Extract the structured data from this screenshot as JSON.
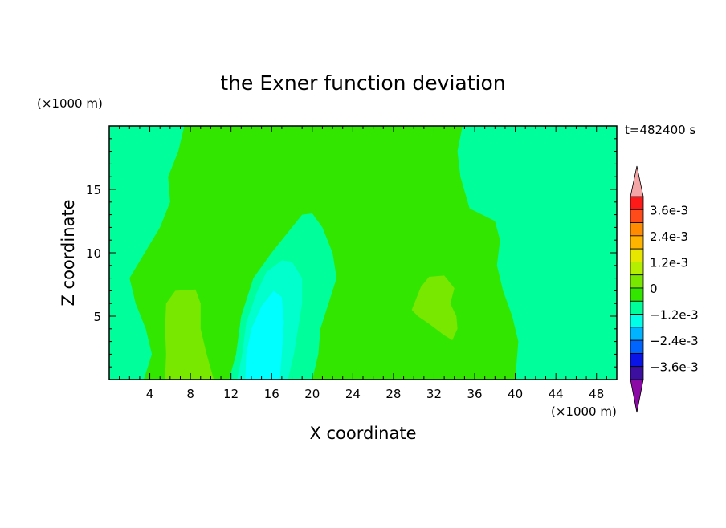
{
  "chart_data": {
    "type": "heatmap",
    "title": "the Exner function deviation",
    "xlabel": "X coordinate",
    "ylabel": "Z coordinate",
    "x_unit": "(×1000 m)",
    "y_unit": "(×1000 m)",
    "time_label": "t=482400 s",
    "xlim": [
      0,
      50
    ],
    "ylim": [
      0,
      20
    ],
    "x_ticks": [
      4,
      8,
      12,
      16,
      20,
      24,
      28,
      32,
      36,
      40,
      44,
      48
    ],
    "y_ticks": [
      5,
      10,
      15
    ],
    "colorbar": {
      "labels": [
        "3.6e-3",
        "2.4e-3",
        "1.2e-3",
        "0",
        "−1.2e-3",
        "−2.4e-3",
        "−3.6e-3"
      ],
      "label_values": [
        0.0036,
        0.0024,
        0.0012,
        0,
        -0.0012,
        -0.0024,
        -0.0036
      ],
      "over_color": "#f4a6a6",
      "under_color": "#8b0aa5",
      "bands": [
        {
          "min": 0.0036,
          "max": 0.0042,
          "color": "#ff1a1a"
        },
        {
          "min": 0.003,
          "max": 0.0036,
          "color": "#ff4a1a"
        },
        {
          "min": 0.0024,
          "max": 0.003,
          "color": "#ff8c00"
        },
        {
          "min": 0.0018,
          "max": 0.0024,
          "color": "#ffb400"
        },
        {
          "min": 0.0012,
          "max": 0.0018,
          "color": "#e6e600"
        },
        {
          "min": 0.0006,
          "max": 0.0012,
          "color": "#b4ee00"
        },
        {
          "min": 0.0,
          "max": 0.0006,
          "color": "#78e800"
        },
        {
          "min": -0.0006,
          "max": 0.0,
          "color": "#33e600"
        },
        {
          "min": -0.0012,
          "max": -0.0006,
          "color": "#00ff9a"
        },
        {
          "min": -0.0018,
          "max": -0.0012,
          "color": "#00ffe6"
        },
        {
          "min": -0.0024,
          "max": -0.0018,
          "color": "#00b4ff"
        },
        {
          "min": -0.003,
          "max": -0.0024,
          "color": "#0064ff"
        },
        {
          "min": -0.0036,
          "max": -0.003,
          "color": "#0a14e6"
        },
        {
          "min": -0.0042,
          "max": -0.0036,
          "color": "#3c0fa0"
        }
      ]
    },
    "fields": [
      {
        "level": 0.0,
        "color": "#33e600",
        "path": [
          [
            3.4,
            0
          ],
          [
            4.2,
            2
          ],
          [
            3.6,
            4
          ],
          [
            2.6,
            6
          ],
          [
            2.0,
            8
          ],
          [
            3.5,
            10
          ],
          [
            5.0,
            12
          ],
          [
            6.0,
            14
          ],
          [
            5.8,
            16
          ],
          [
            6.8,
            18
          ],
          [
            7.4,
            20
          ],
          [
            34.8,
            20
          ],
          [
            34.3,
            18
          ],
          [
            34.6,
            16
          ],
          [
            35.5,
            13.5
          ],
          [
            38.0,
            12.5
          ],
          [
            38.5,
            11.0
          ],
          [
            38.2,
            9.0
          ],
          [
            38.8,
            7.0
          ],
          [
            39.7,
            5.0
          ],
          [
            40.3,
            3.0
          ],
          [
            40.0,
            0
          ]
        ]
      },
      {
        "level": 0.0006,
        "color": "#78e800",
        "path": [
          [
            5.5,
            0
          ],
          [
            5.6,
            2
          ],
          [
            5.5,
            4
          ],
          [
            5.6,
            6
          ],
          [
            6.5,
            7.0
          ],
          [
            8.5,
            7.1
          ],
          [
            9.0,
            6.0
          ],
          [
            9.0,
            4.0
          ],
          [
            9.6,
            2.0
          ],
          [
            10.3,
            0
          ]
        ]
      },
      {
        "level": 0.0006,
        "color": "#78e800",
        "path": [
          [
            29.8,
            5.5
          ],
          [
            30.7,
            7.3
          ],
          [
            31.5,
            8.1
          ],
          [
            33.0,
            8.2
          ],
          [
            34.0,
            7.2
          ],
          [
            33.6,
            6.0
          ],
          [
            34.2,
            5.0
          ],
          [
            34.3,
            4.0
          ],
          [
            33.8,
            3.1
          ],
          [
            33.0,
            3.5
          ],
          [
            31.5,
            4.4
          ],
          [
            30.4,
            5.0
          ]
        ]
      },
      {
        "level": -0.0006,
        "color": "#00ff9a",
        "path": [
          [
            11.8,
            0
          ],
          [
            12.5,
            2
          ],
          [
            13.0,
            5
          ],
          [
            14.2,
            8
          ],
          [
            16.0,
            10
          ],
          [
            18.0,
            12
          ],
          [
            19.0,
            13.0
          ],
          [
            20.0,
            13.1
          ],
          [
            21.0,
            12.0
          ],
          [
            22.0,
            10.0
          ],
          [
            22.4,
            8.0
          ],
          [
            21.6,
            6.0
          ],
          [
            20.8,
            4.0
          ],
          [
            20.6,
            2.0
          ],
          [
            20.0,
            0
          ]
        ]
      },
      {
        "level": -0.0012,
        "color": "#00ffcc",
        "path": [
          [
            12.6,
            0
          ],
          [
            13.1,
            2
          ],
          [
            13.5,
            4.5
          ],
          [
            14.5,
            6.8
          ],
          [
            15.5,
            8.5
          ],
          [
            17.0,
            9.4
          ],
          [
            18.0,
            9.3
          ],
          [
            19.0,
            8.0
          ],
          [
            19.0,
            6.0
          ],
          [
            18.6,
            4.0
          ],
          [
            18.2,
            2.0
          ],
          [
            17.6,
            0
          ]
        ]
      },
      {
        "level": -0.0018,
        "color": "#00ffff",
        "path": [
          [
            13.4,
            0
          ],
          [
            13.5,
            2
          ],
          [
            14.0,
            4
          ],
          [
            15.0,
            5.8
          ],
          [
            16.2,
            7.0
          ],
          [
            17.0,
            6.5
          ],
          [
            17.2,
            4.5
          ],
          [
            17.0,
            2.0
          ],
          [
            16.8,
            0
          ]
        ]
      }
    ],
    "background_color": "#00ff9a"
  }
}
